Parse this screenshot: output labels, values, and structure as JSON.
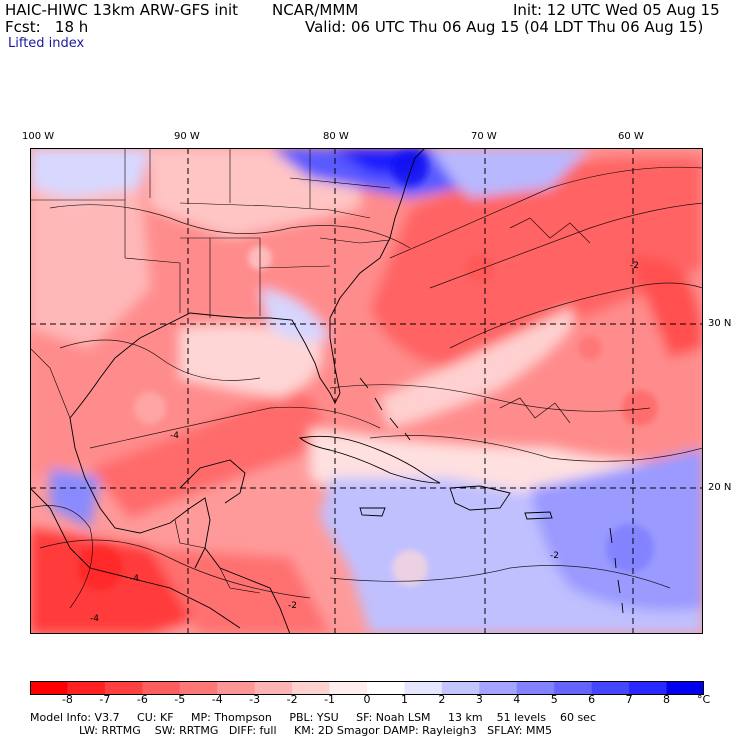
{
  "header": {
    "model_title": "HAIC-HIWC 13km ARW-GFS init",
    "org": "NCAR/MMM",
    "init": "Init: 12 UTC Wed 05 Aug 15",
    "fcst": "Fcst:   18 h",
    "valid": "Valid: 06 UTC Thu 06 Aug 15 (04 LDT Thu 06 Aug 15)",
    "field": "Lifted index"
  },
  "map": {
    "lon_labels": [
      "100 W",
      "90 W",
      "80 W",
      "70 W",
      "60 W"
    ],
    "lat_labels": [
      "30 N",
      "20 N"
    ],
    "contour_labels": [
      "-4",
      "-4",
      "-2",
      "-2",
      "-4",
      "-2"
    ]
  },
  "colorbar": {
    "unit": "°C",
    "labels": [
      "-8",
      "-7",
      "-6",
      "-5",
      "-4",
      "-3",
      "-2",
      "-1",
      "0",
      "1",
      "2",
      "3",
      "4",
      "5",
      "6",
      "7",
      "8"
    ],
    "colors": [
      "#ff0000",
      "#ff2222",
      "#ff4040",
      "#ff5e5e",
      "#ff7878",
      "#ff9696",
      "#ffb4b4",
      "#ffd2d2",
      "#ffeeee",
      "#ffffff",
      "#e6e6ff",
      "#c4c4ff",
      "#a4a4ff",
      "#8282ff",
      "#6464ff",
      "#4646ff",
      "#2828ff",
      "#0000ee"
    ]
  },
  "model_info": {
    "line1": "Model Info: V3.7     CU: KF     MP: Thompson     PBL: YSU     SF: Noah LSM     13 km    51 levels    60 sec",
    "line2": "              LW: RRTMG    SW: RRTMG   DIFF: full     KM: 2D Smagor DAMP: Rayleigh3   SFLAY: MM5"
  }
}
